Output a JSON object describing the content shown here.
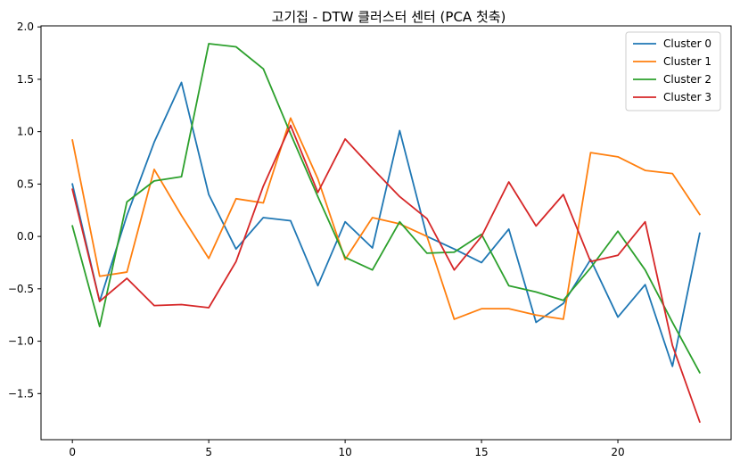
{
  "chart_data": {
    "type": "line",
    "title": "고기집 - DTW 클러스터 센터 (PCA 첫축)",
    "xlabel": "",
    "ylabel": "",
    "xlim": [
      -1.15,
      24.15
    ],
    "ylim": [
      -1.94,
      2.01
    ],
    "x": [
      0,
      1,
      2,
      3,
      4,
      5,
      6,
      7,
      8,
      9,
      10,
      11,
      12,
      13,
      14,
      15,
      16,
      17,
      18,
      19,
      20,
      21,
      22,
      23
    ],
    "x_ticks": [
      0,
      5,
      10,
      15,
      20
    ],
    "x_tick_labels": [
      "0",
      "5",
      "10",
      "15",
      "20"
    ],
    "y_ticks": [
      2.0,
      1.5,
      1.0,
      0.5,
      0.0,
      -0.5,
      -1.0,
      -1.5
    ],
    "y_tick_labels": [
      "2.0",
      "1.5",
      "1.0",
      "0.5",
      "0.0",
      "−0.5",
      "−1.0",
      "−1.5"
    ],
    "grid": false,
    "legend_position": "top-right",
    "series": [
      {
        "name": "Cluster 0",
        "color": "#1f77b4",
        "values": [
          0.5,
          -0.62,
          0.2,
          0.9,
          1.47,
          0.4,
          -0.12,
          0.18,
          0.15,
          -0.47,
          0.14,
          -0.11,
          1.01,
          0.0,
          -0.12,
          -0.25,
          0.07,
          -0.82,
          -0.64,
          -0.22,
          -0.77,
          -0.46,
          -1.24,
          0.03
        ]
      },
      {
        "name": "Cluster 1",
        "color": "#ff7f0e",
        "values": [
          0.92,
          -0.38,
          -0.34,
          0.64,
          0.2,
          -0.21,
          0.36,
          0.32,
          1.13,
          0.55,
          -0.22,
          0.18,
          0.12,
          0.0,
          -0.79,
          -0.69,
          -0.69,
          -0.75,
          -0.79,
          0.8,
          0.76,
          0.63,
          0.6,
          0.21
        ]
      },
      {
        "name": "Cluster 2",
        "color": "#2ca02c",
        "values": [
          0.1,
          -0.86,
          0.33,
          0.53,
          0.57,
          1.84,
          1.81,
          1.6,
          0.98,
          0.38,
          -0.2,
          -0.32,
          0.14,
          -0.16,
          -0.15,
          0.02,
          -0.47,
          -0.53,
          -0.61,
          -0.3,
          0.05,
          -0.32,
          -0.82,
          -1.3
        ]
      },
      {
        "name": "Cluster 3",
        "color": "#d62728",
        "values": [
          0.45,
          -0.62,
          -0.4,
          -0.66,
          -0.65,
          -0.68,
          -0.24,
          0.48,
          1.06,
          0.42,
          0.93,
          0.65,
          0.38,
          0.17,
          -0.32,
          0.0,
          0.52,
          0.1,
          0.4,
          -0.24,
          -0.18,
          0.14,
          -1.04,
          -1.77
        ]
      }
    ]
  }
}
